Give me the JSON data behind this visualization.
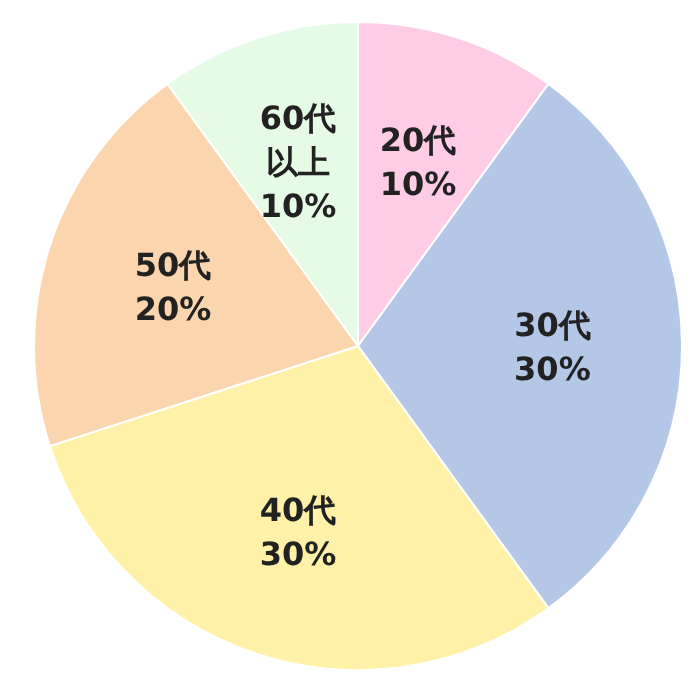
{
  "chart_data": {
    "type": "pie",
    "categories": [
      "20代",
      "30代",
      "40代",
      "50代",
      "60代以上"
    ],
    "values": [
      10,
      30,
      30,
      20,
      10
    ],
    "value_labels": [
      "10%",
      "30%",
      "30%",
      "20%",
      "10%"
    ],
    "colors": [
      "#ffcce5",
      "#b4c7e7",
      "#fff2a8",
      "#fbd5ad",
      "#e5fbe5"
    ]
  }
}
